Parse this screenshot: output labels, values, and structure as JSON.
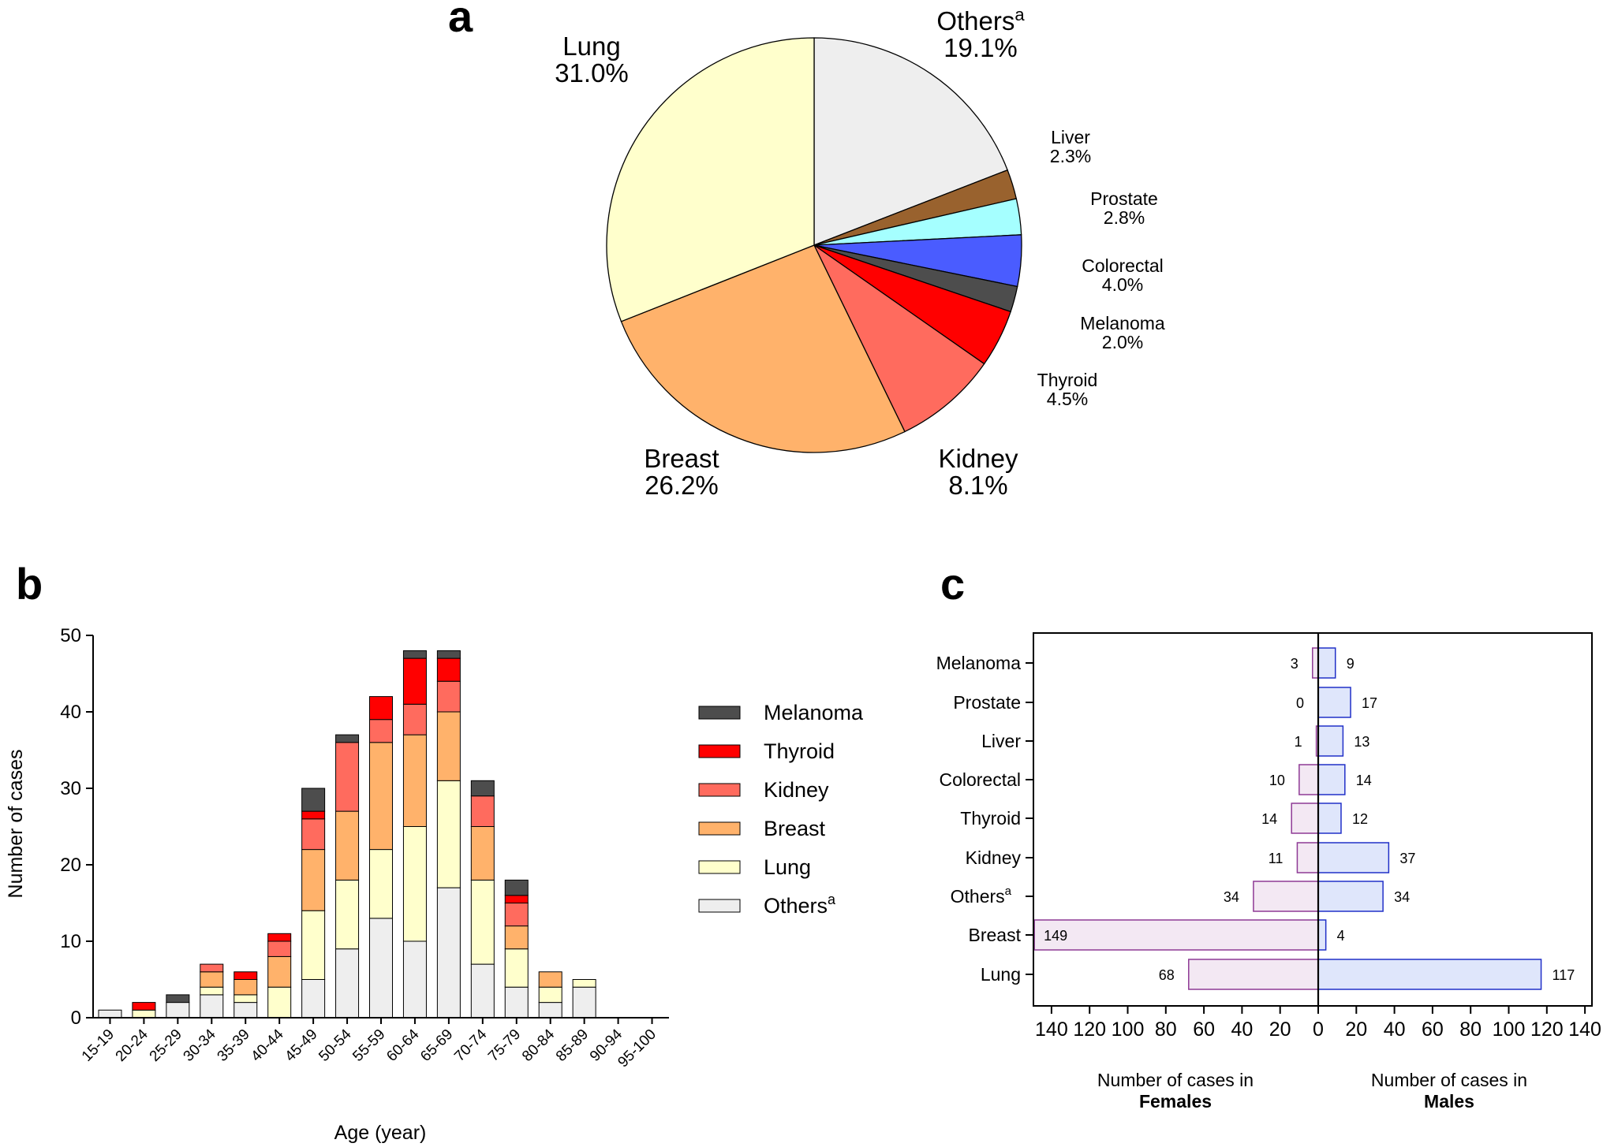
{
  "colors": {
    "Melanoma": "#4d4d4d",
    "Thyroid": "#ff0000",
    "Kidney": "#ff6b5e",
    "Breast": "#ffb26b",
    "Lung": "#ffffcc",
    "Others": "#eeeeee",
    "Liver": "#99622e",
    "Prostate": "#a5ffff",
    "Colorectal": "#4a5cff",
    "female_fill": "#f3e8f3",
    "female_stroke": "#8e3a95",
    "male_fill": "#dfe6fb",
    "male_stroke": "#2130c8"
  },
  "chart_data": [
    {
      "panel": "a",
      "type": "pie",
      "title": "a",
      "slices": [
        {
          "name": "Others",
          "superscript": "a",
          "value": 19.1,
          "label": "19.1%",
          "color": "#eeeeee"
        },
        {
          "name": "Liver",
          "value": 2.3,
          "label": "2.3%",
          "color": "#99622e"
        },
        {
          "name": "Prostate",
          "value": 2.8,
          "label": "2.8%",
          "color": "#a5ffff"
        },
        {
          "name": "Colorectal",
          "value": 4.0,
          "label": "4.0%",
          "color": "#4a5cff"
        },
        {
          "name": "Melanoma",
          "value": 2.0,
          "label": "2.0%",
          "color": "#4d4d4d"
        },
        {
          "name": "Thyroid",
          "value": 4.5,
          "label": "4.5%",
          "color": "#ff0000"
        },
        {
          "name": "Kidney",
          "value": 8.1,
          "label": "8.1%",
          "color": "#ff6b5e"
        },
        {
          "name": "Breast",
          "value": 26.2,
          "label": "26.2%",
          "color": "#ffb26b"
        },
        {
          "name": "Lung",
          "value": 31.0,
          "label": "31.0%",
          "color": "#ffffcc"
        }
      ]
    },
    {
      "panel": "b",
      "type": "bar",
      "stacked": true,
      "title": "b",
      "xlabel": "Age (year)",
      "ylabel": "Number of cases",
      "ylim": [
        0,
        50
      ],
      "yticks": [
        0,
        10,
        20,
        30,
        40,
        50
      ],
      "categories": [
        "15-19",
        "20-24",
        "25-29",
        "30-34",
        "35-39",
        "40-44",
        "45-49",
        "50-54",
        "55-59",
        "60-64",
        "65-69",
        "70-74",
        "75-79",
        "80-84",
        "85-89",
        "90-94",
        "95-100"
      ],
      "series": [
        {
          "name": "Others",
          "superscript": "a",
          "values": [
            1,
            0,
            2,
            3,
            2,
            0,
            5,
            9,
            13,
            10,
            17,
            7,
            4,
            2,
            4,
            0,
            0
          ]
        },
        {
          "name": "Lung",
          "values": [
            0,
            1,
            0,
            1,
            1,
            4,
            9,
            9,
            9,
            15,
            14,
            11,
            5,
            2,
            1,
            0,
            0
          ]
        },
        {
          "name": "Breast",
          "values": [
            0,
            0,
            0,
            2,
            2,
            4,
            8,
            9,
            14,
            12,
            9,
            7,
            3,
            2,
            0,
            0,
            0
          ]
        },
        {
          "name": "Kidney",
          "values": [
            0,
            0,
            0,
            1,
            0,
            2,
            4,
            9,
            3,
            4,
            4,
            4,
            3,
            0,
            0,
            0,
            0
          ]
        },
        {
          "name": "Thyroid",
          "values": [
            0,
            1,
            0,
            0,
            1,
            1,
            1,
            0,
            3,
            6,
            3,
            0,
            1,
            0,
            0,
            0,
            0
          ]
        },
        {
          "name": "Melanoma",
          "values": [
            0,
            0,
            1,
            0,
            0,
            0,
            3,
            1,
            0,
            1,
            1,
            2,
            2,
            0,
            0,
            0,
            0
          ]
        }
      ],
      "legend_order": [
        "Melanoma",
        "Thyroid",
        "Kidney",
        "Breast",
        "Lung",
        "Others"
      ],
      "legend_position": "right"
    },
    {
      "panel": "c",
      "type": "bar",
      "orientation": "horizontal",
      "title": "c",
      "categories": [
        "Melanoma",
        "Prostate",
        "Liver",
        "Colorectal",
        "Thyroid",
        "Kidney",
        "Others",
        "Breast",
        "Lung"
      ],
      "category_superscripts": {
        "Others": "a"
      },
      "series": [
        {
          "name": "Females",
          "values": [
            3,
            0,
            1,
            10,
            14,
            11,
            34,
            149,
            68
          ]
        },
        {
          "name": "Males",
          "values": [
            9,
            17,
            13,
            14,
            12,
            37,
            34,
            4,
            117
          ]
        }
      ],
      "xlim": [
        -150,
        140
      ],
      "xticks": [
        140,
        120,
        100,
        80,
        60,
        40,
        20,
        0,
        20,
        40,
        60,
        80,
        100,
        120,
        140
      ],
      "xlabel_left": {
        "line1": "Number of cases in",
        "line2": "Females"
      },
      "xlabel_right": {
        "line1": "Number of cases in",
        "line2": "Males"
      }
    }
  ]
}
